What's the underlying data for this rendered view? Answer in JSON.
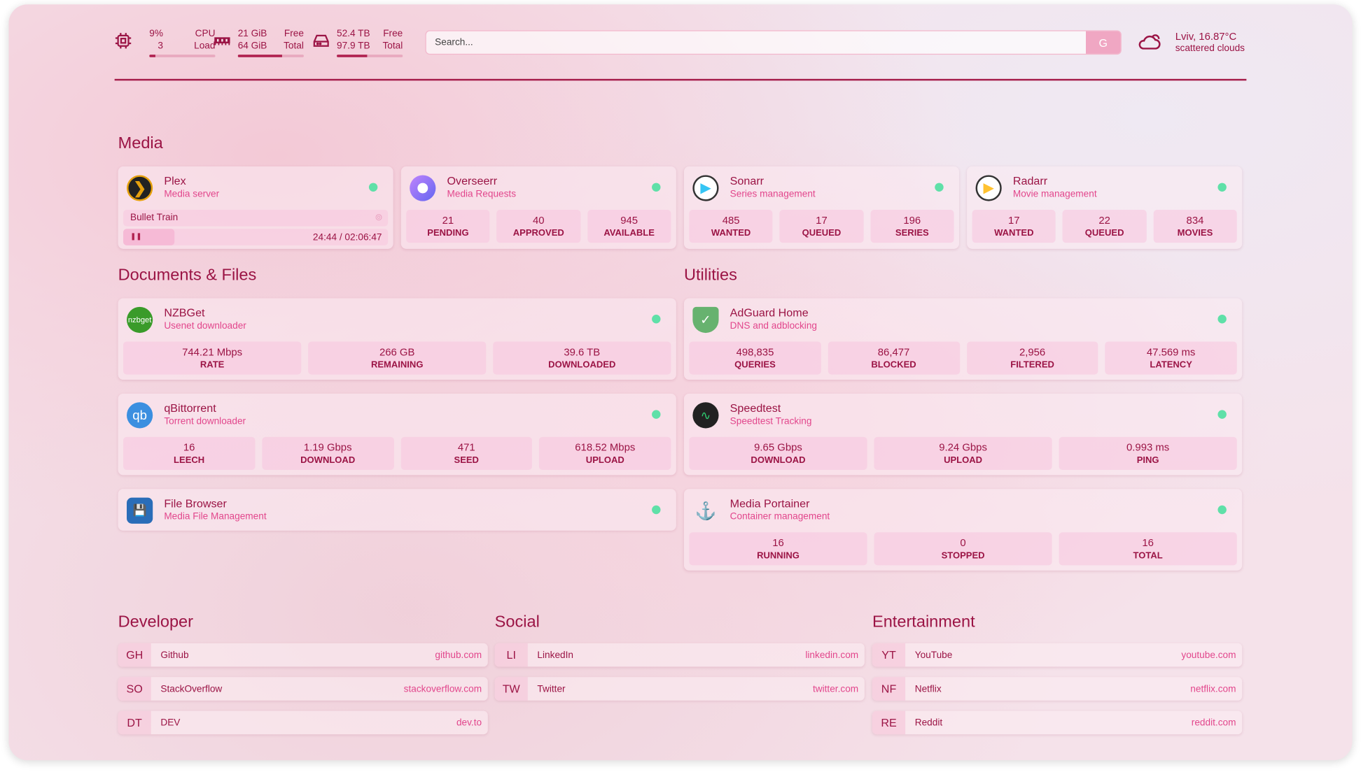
{
  "resources": {
    "cpu": {
      "icon": "cpu-icon",
      "value": "9%",
      "value2": "3",
      "label": "CPU",
      "label2": "Load",
      "percent": 9
    },
    "memory": {
      "icon": "memory-icon",
      "value": "21 GiB",
      "value2": "64 GiB",
      "label": "Free",
      "label2": "Total",
      "percent": 67
    },
    "disk": {
      "icon": "disk-icon",
      "value": "52.4 TB",
      "value2": "97.9 TB",
      "label": "Free",
      "label2": "Total",
      "percent": 46
    }
  },
  "search": {
    "placeholder": "Search...",
    "button": "G"
  },
  "weather": {
    "icon": "cloud-icon",
    "location_temp": "Lviv, 16.87°C",
    "condition": "scattered clouds"
  },
  "colors": {
    "accent": "#9b1445",
    "subtitle": "#e2468c",
    "status_up": "#5fe0a8",
    "stat_bg": "#f8c4de"
  },
  "sections": {
    "media": "Media",
    "docs": "Documents & Files",
    "utilities": "Utilities",
    "developer": "Developer",
    "social": "Social",
    "entertainment": "Entertainment"
  },
  "media": [
    {
      "name": "Plex",
      "desc": "Media server",
      "icon": "plex-icon",
      "now_playing": {
        "title": "Bullet Train",
        "time": "24:44 / 02:06:47",
        "state": "paused",
        "progress": 19.5
      }
    },
    {
      "name": "Overseerr",
      "desc": "Media Requests",
      "icon": "overseerr-icon",
      "stats": [
        {
          "v": "21",
          "l": "PENDING"
        },
        {
          "v": "40",
          "l": "APPROVED"
        },
        {
          "v": "945",
          "l": "AVAILABLE"
        }
      ]
    },
    {
      "name": "Sonarr",
      "desc": "Series management",
      "icon": "sonarr-icon",
      "stats": [
        {
          "v": "485",
          "l": "WANTED"
        },
        {
          "v": "17",
          "l": "QUEUED"
        },
        {
          "v": "196",
          "l": "SERIES"
        }
      ]
    },
    {
      "name": "Radarr",
      "desc": "Movie management",
      "icon": "radarr-icon",
      "stats": [
        {
          "v": "17",
          "l": "WANTED"
        },
        {
          "v": "22",
          "l": "QUEUED"
        },
        {
          "v": "834",
          "l": "MOVIES"
        }
      ]
    }
  ],
  "docs": [
    {
      "name": "NZBGet",
      "desc": "Usenet downloader",
      "icon": "nzbget-icon",
      "stats": [
        {
          "v": "744.21 Mbps",
          "l": "RATE"
        },
        {
          "v": "266 GB",
          "l": "REMAINING"
        },
        {
          "v": "39.6 TB",
          "l": "DOWNLOADED"
        }
      ]
    },
    {
      "name": "qBittorrent",
      "desc": "Torrent downloader",
      "icon": "qbittorrent-icon",
      "stats": [
        {
          "v": "16",
          "l": "LEECH"
        },
        {
          "v": "1.19 Gbps",
          "l": "DOWNLOAD"
        },
        {
          "v": "471",
          "l": "SEED"
        },
        {
          "v": "618.52 Mbps",
          "l": "UPLOAD"
        }
      ]
    },
    {
      "name": "File Browser",
      "desc": "Media File Management",
      "icon": "filebrowser-icon"
    }
  ],
  "utilities": [
    {
      "name": "AdGuard Home",
      "desc": "DNS and adblocking",
      "icon": "adguard-icon",
      "stats": [
        {
          "v": "498,835",
          "l": "QUERIES"
        },
        {
          "v": "86,477",
          "l": "BLOCKED"
        },
        {
          "v": "2,956",
          "l": "FILTERED"
        },
        {
          "v": "47.569 ms",
          "l": "LATENCY"
        }
      ]
    },
    {
      "name": "Speedtest",
      "desc": "Speedtest Tracking",
      "icon": "speedtest-icon",
      "stats": [
        {
          "v": "9.65 Gbps",
          "l": "DOWNLOAD"
        },
        {
          "v": "9.24 Gbps",
          "l": "UPLOAD"
        },
        {
          "v": "0.993 ms",
          "l": "PING"
        }
      ]
    },
    {
      "name": "Media Portainer",
      "desc": "Container management",
      "icon": "portainer-icon",
      "stats": [
        {
          "v": "16",
          "l": "RUNNING"
        },
        {
          "v": "0",
          "l": "STOPPED"
        },
        {
          "v": "16",
          "l": "TOTAL"
        }
      ]
    }
  ],
  "bookmarks": {
    "developer": [
      {
        "abbr": "GH",
        "name": "Github",
        "url": "github.com"
      },
      {
        "abbr": "SO",
        "name": "StackOverflow",
        "url": "stackoverflow.com"
      },
      {
        "abbr": "DT",
        "name": "DEV",
        "url": "dev.to"
      }
    ],
    "social": [
      {
        "abbr": "LI",
        "name": "LinkedIn",
        "url": "linkedin.com"
      },
      {
        "abbr": "TW",
        "name": "Twitter",
        "url": "twitter.com"
      }
    ],
    "entertainment": [
      {
        "abbr": "YT",
        "name": "YouTube",
        "url": "youtube.com"
      },
      {
        "abbr": "NF",
        "name": "Netflix",
        "url": "netflix.com"
      },
      {
        "abbr": "RE",
        "name": "Reddit",
        "url": "reddit.com"
      }
    ]
  }
}
